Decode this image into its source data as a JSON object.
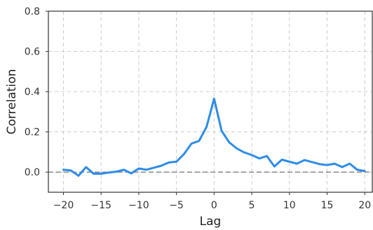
{
  "chart_data": {
    "type": "line",
    "title": "",
    "xlabel": "Lag",
    "ylabel": "Correlation",
    "xlim": [
      -22,
      21
    ],
    "ylim": [
      -0.1,
      0.8
    ],
    "xticks": [
      -20,
      -15,
      -10,
      -5,
      0,
      5,
      10,
      15,
      20
    ],
    "xtick_labels": [
      "−20",
      "−15",
      "−10",
      "−5",
      "0",
      "5",
      "10",
      "15",
      "20"
    ],
    "yticks": [
      0.0,
      0.2,
      0.4,
      0.6,
      0.8
    ],
    "ytick_labels": [
      "0.0",
      "0.2",
      "0.4",
      "0.6",
      "0.8"
    ],
    "grid": true,
    "reference_line": {
      "y": 0.0,
      "style": "dashed",
      "color": "#808080"
    },
    "series": [
      {
        "color": "#2e8ce8",
        "x": [
          -20,
          -19,
          -18,
          -17,
          -16,
          -15,
          -14,
          -13,
          -12,
          -11,
          -10,
          -9,
          -8,
          -7,
          -6,
          -5,
          -4,
          -3,
          -2,
          -1,
          0,
          1,
          2,
          3,
          4,
          5,
          6,
          7,
          8,
          9,
          10,
          11,
          12,
          13,
          14,
          15,
          16,
          17,
          18,
          19,
          20
        ],
        "values": [
          0.012,
          0.008,
          -0.018,
          0.025,
          -0.008,
          -0.008,
          -0.002,
          0.002,
          0.012,
          -0.006,
          0.018,
          0.012,
          0.022,
          0.032,
          0.048,
          0.052,
          0.09,
          0.142,
          0.155,
          0.225,
          0.365,
          0.205,
          0.148,
          0.118,
          0.098,
          0.085,
          0.068,
          0.08,
          0.028,
          0.062,
          0.052,
          0.042,
          0.06,
          0.05,
          0.04,
          0.035,
          0.042,
          0.025,
          0.042,
          0.012,
          0.005
        ]
      }
    ]
  }
}
